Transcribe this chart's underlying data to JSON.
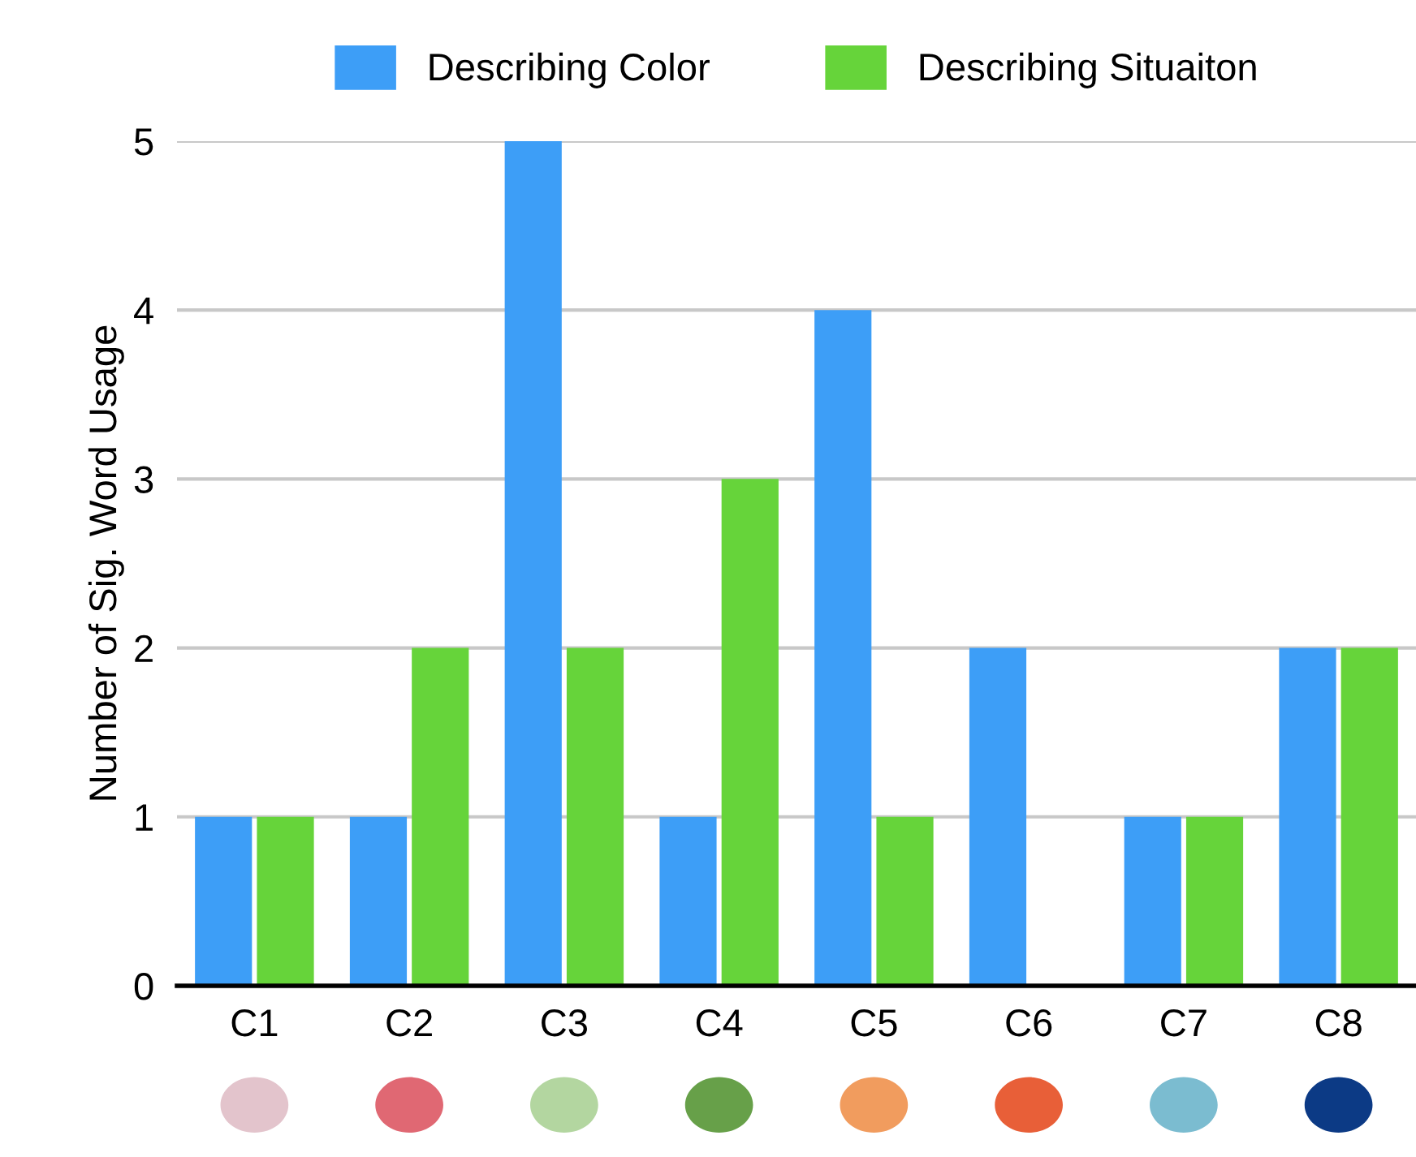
{
  "chart_data": {
    "type": "bar",
    "ylabel": "Number of Sig. Word Usage",
    "categories": [
      "C1",
      "C2",
      "C3",
      "C4",
      "C5",
      "C6",
      "C7",
      "C8"
    ],
    "series": [
      {
        "name": "Describing Color",
        "color": "#3d9ef7",
        "values": [
          1,
          1,
          5,
          1,
          4,
          2,
          1,
          2
        ]
      },
      {
        "name": "Describing Situaiton",
        "color": "#66d43a",
        "values": [
          1,
          2,
          2,
          3,
          1,
          0,
          1,
          2
        ]
      }
    ],
    "ylim": [
      0,
      5
    ],
    "yticks": [
      0,
      1,
      2,
      3,
      4,
      5
    ],
    "grid": "y",
    "legend": "top"
  }
}
